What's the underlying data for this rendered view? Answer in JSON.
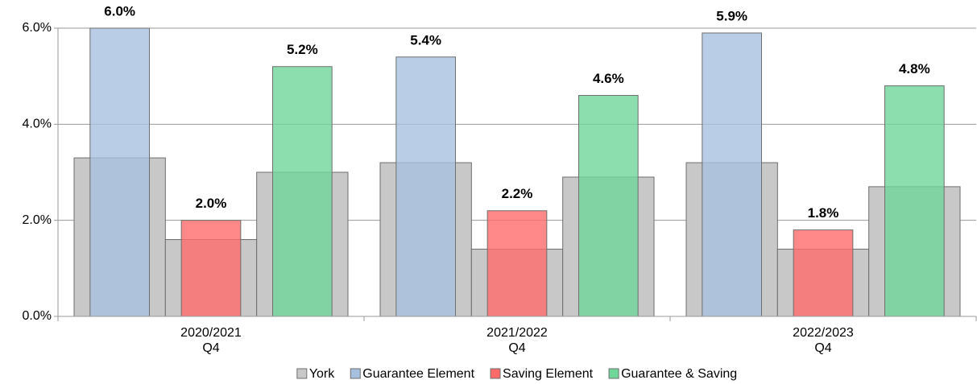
{
  "chart_data": {
    "type": "bar",
    "categories": [
      [
        "2020/2021",
        "Q4"
      ],
      [
        "2021/2022",
        "Q4"
      ],
      [
        "2022/2023",
        "Q4"
      ]
    ],
    "benchmark": {
      "name": "York",
      "color": "#c8c8c8"
    },
    "series": [
      {
        "name": "Guarantee Element",
        "color": "#a7c0e0",
        "values": [
          6.0,
          5.4,
          5.9
        ],
        "value_labels": [
          "6.0%",
          "5.4%",
          "5.9%"
        ],
        "benchmark_values": [
          3.3,
          3.2,
          3.2
        ]
      },
      {
        "name": "Saving Element",
        "color": "#ff6b6b",
        "values": [
          2.0,
          2.2,
          1.8
        ],
        "value_labels": [
          "2.0%",
          "2.2%",
          "1.8%"
        ],
        "benchmark_values": [
          1.6,
          1.4,
          1.4
        ]
      },
      {
        "name": "Guarantee & Saving",
        "color": "#6fd69a",
        "values": [
          5.2,
          4.6,
          4.8
        ],
        "value_labels": [
          "5.2%",
          "4.6%",
          "4.8%"
        ],
        "benchmark_values": [
          3.0,
          2.9,
          2.7
        ]
      }
    ],
    "ylim": [
      0,
      6
    ],
    "yticks": [
      {
        "value": 0,
        "label": "0.0%"
      },
      {
        "value": 2,
        "label": "2.0%"
      },
      {
        "value": 4,
        "label": "4.0%"
      },
      {
        "value": 6,
        "label": "6.0%"
      }
    ],
    "grid": true
  }
}
